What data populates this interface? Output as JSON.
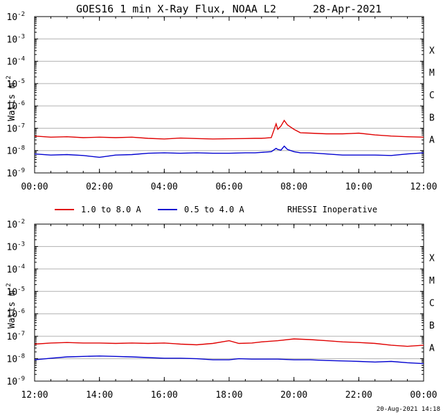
{
  "title": "GOES16  1 min  X-Ray Flux, NOAA L2",
  "date": "28-Apr-2021",
  "timestamp": "20-Aug-2021 14:18",
  "ylabel_base": "Watts m",
  "ylabel_exp": "-2",
  "y_tick_base": "10",
  "flare_classes": [
    "X",
    "M",
    "C",
    "B",
    "A"
  ],
  "legend": [
    {
      "label": "1.0 to 8.0 A",
      "color": "#e00000"
    },
    {
      "label": "0.5 to 4.0 A",
      "color": "#0000d0"
    }
  ],
  "note": "RHESSI Inoperative",
  "chart_data": [
    {
      "type": "line",
      "xlim": [
        0,
        12
      ],
      "ylim_log10": [
        -9,
        -2
      ],
      "yscale": "log",
      "grid": "horizontal",
      "xtick_labels": [
        "00:00",
        "02:00",
        "04:00",
        "06:00",
        "08:00",
        "10:00",
        "12:00"
      ],
      "ytick_exponents": [
        "-2",
        "-3",
        "-4",
        "-5",
        "-6",
        "-7",
        "-8",
        "-9"
      ],
      "series": [
        {
          "name": "1.0 to 8.0 A",
          "color": "#e00000",
          "x": [
            0,
            0.5,
            1,
            1.5,
            2,
            2.5,
            3,
            3.5,
            4,
            4.5,
            5,
            5.5,
            6,
            6.5,
            6.8,
            7,
            7.3,
            7.45,
            7.5,
            7.6,
            7.7,
            7.8,
            7.9,
            8,
            8.2,
            8.5,
            9,
            9.5,
            10,
            10.5,
            11,
            11.5,
            12
          ],
          "log10": [
            -7.35,
            -7.4,
            -7.38,
            -7.42,
            -7.4,
            -7.42,
            -7.4,
            -7.45,
            -7.48,
            -7.44,
            -7.46,
            -7.48,
            -7.47,
            -7.46,
            -7.45,
            -7.45,
            -7.42,
            -6.8,
            -7.05,
            -6.9,
            -6.65,
            -6.85,
            -6.95,
            -7.05,
            -7.2,
            -7.22,
            -7.25,
            -7.25,
            -7.22,
            -7.3,
            -7.35,
            -7.38,
            -7.4
          ]
        },
        {
          "name": "0.5 to 4.0 A",
          "color": "#0000d0",
          "x": [
            0,
            0.5,
            1,
            1.5,
            2,
            2.5,
            3,
            3.5,
            4,
            4.5,
            5,
            5.5,
            6,
            6.5,
            6.8,
            7,
            7.3,
            7.45,
            7.5,
            7.6,
            7.7,
            7.8,
            7.9,
            8,
            8.2,
            8.5,
            9,
            9.5,
            10,
            10.5,
            11,
            11.5,
            12
          ],
          "log10": [
            -8.15,
            -8.2,
            -8.18,
            -8.22,
            -8.3,
            -8.2,
            -8.18,
            -8.12,
            -8.1,
            -8.12,
            -8.1,
            -8.12,
            -8.12,
            -8.1,
            -8.1,
            -8.08,
            -8.05,
            -7.9,
            -7.95,
            -7.98,
            -7.8,
            -7.95,
            -8.0,
            -8.05,
            -8.1,
            -8.1,
            -8.15,
            -8.2,
            -8.2,
            -8.2,
            -8.22,
            -8.15,
            -8.1
          ]
        }
      ]
    },
    {
      "type": "line",
      "xlim": [
        12,
        24
      ],
      "ylim_log10": [
        -9,
        -2
      ],
      "yscale": "log",
      "grid": "horizontal",
      "xtick_labels": [
        "12:00",
        "14:00",
        "16:00",
        "18:00",
        "20:00",
        "22:00",
        "00:00"
      ],
      "ytick_exponents": [
        "-2",
        "-3",
        "-4",
        "-5",
        "-6",
        "-7",
        "-8",
        "-9"
      ],
      "series": [
        {
          "name": "1.0 to 8.0 A",
          "color": "#e00000",
          "x": [
            12,
            12.5,
            13,
            13.5,
            14,
            14.5,
            15,
            15.5,
            16,
            16.5,
            17,
            17.5,
            18,
            18.3,
            18.7,
            19,
            19.5,
            20,
            20.5,
            21,
            21.5,
            22,
            22.5,
            23,
            23.5,
            24
          ],
          "log10": [
            -7.35,
            -7.3,
            -7.28,
            -7.3,
            -7.3,
            -7.32,
            -7.3,
            -7.32,
            -7.3,
            -7.35,
            -7.38,
            -7.32,
            -7.2,
            -7.32,
            -7.3,
            -7.25,
            -7.2,
            -7.12,
            -7.15,
            -7.2,
            -7.25,
            -7.28,
            -7.32,
            -7.4,
            -7.45,
            -7.4
          ]
        },
        {
          "name": "0.5 to 4.0 A",
          "color": "#0000d0",
          "x": [
            12,
            12.5,
            13,
            13.5,
            14,
            14.5,
            15,
            15.5,
            16,
            16.5,
            17,
            17.5,
            18,
            18.3,
            18.7,
            19,
            19.5,
            20,
            20.5,
            21,
            21.5,
            22,
            22.5,
            23,
            23.5,
            24
          ],
          "log10": [
            -8.05,
            -7.98,
            -7.92,
            -7.9,
            -7.88,
            -7.9,
            -7.92,
            -7.95,
            -7.98,
            -7.98,
            -8.0,
            -8.05,
            -8.05,
            -8.0,
            -8.02,
            -8.02,
            -8.02,
            -8.05,
            -8.05,
            -8.08,
            -8.1,
            -8.12,
            -8.15,
            -8.12,
            -8.18,
            -8.22
          ]
        }
      ]
    }
  ]
}
